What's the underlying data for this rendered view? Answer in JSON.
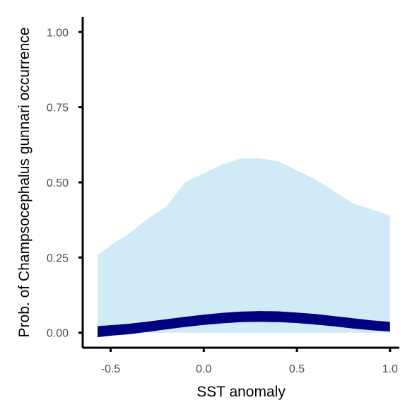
{
  "chart_data": {
    "type": "area",
    "title": "",
    "xlabel": "SST anomaly",
    "ylabel": "Prob. of  Champsocephalus gunnari  occurrence",
    "xlim": [
      -0.65,
      1.05
    ],
    "ylim": [
      -0.05,
      1.05
    ],
    "x_ticks": [
      -0.5,
      0.0,
      0.5,
      1.0
    ],
    "x_tick_labels": [
      "-0.5",
      "0.0",
      "0.5",
      "1.0"
    ],
    "y_ticks": [
      0.0,
      0.25,
      0.5,
      0.75,
      1.0
    ],
    "y_tick_labels": [
      "0.00",
      "0.25",
      "0.50",
      "0.75",
      "1.00"
    ],
    "grid": false,
    "legend": "none",
    "x": [
      -0.57,
      -0.5,
      -0.4,
      -0.3,
      -0.2,
      -0.1,
      0.0,
      0.1,
      0.2,
      0.3,
      0.4,
      0.5,
      0.6,
      0.7,
      0.8,
      0.9,
      1.0
    ],
    "series": [
      {
        "role": "confidence band",
        "color": "#d1eaf7",
        "lower": [
          0.0,
          0.0,
          0.0,
          0.0,
          0.0,
          0.0,
          0.0,
          0.0,
          0.0,
          0.0,
          0.0,
          0.0,
          0.0,
          0.0,
          0.0,
          0.0,
          0.0
        ],
        "upper": [
          0.257,
          0.29,
          0.33,
          0.38,
          0.42,
          0.5,
          0.53,
          0.56,
          0.58,
          0.58,
          0.57,
          0.54,
          0.51,
          0.47,
          0.43,
          0.41,
          0.39
        ]
      },
      {
        "role": "fitted probability band",
        "color": "#000080",
        "lower": [
          -0.015,
          -0.01,
          -0.005,
          0.003,
          0.011,
          0.019,
          0.026,
          0.031,
          0.035,
          0.036,
          0.035,
          0.032,
          0.027,
          0.021,
          0.014,
          0.008,
          0.004
        ],
        "upper": [
          0.022,
          0.025,
          0.03,
          0.037,
          0.045,
          0.053,
          0.06,
          0.066,
          0.07,
          0.072,
          0.071,
          0.067,
          0.062,
          0.055,
          0.048,
          0.041,
          0.036
        ]
      }
    ]
  }
}
